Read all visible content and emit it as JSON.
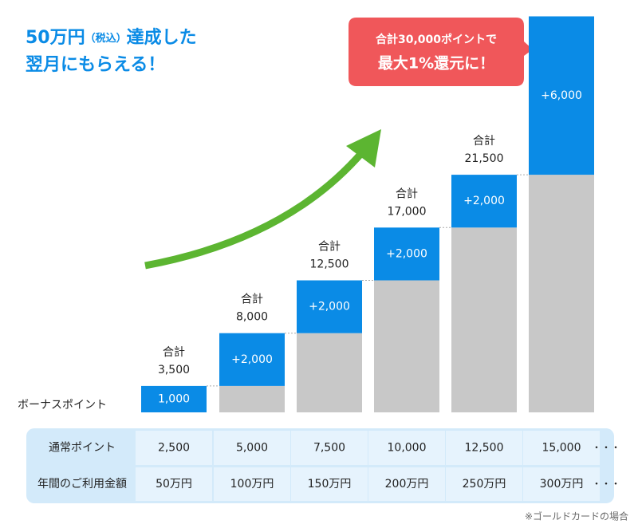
{
  "chart_data": {
    "type": "waterfall",
    "title_main": "50万円",
    "title_note": "（税込）",
    "title_rest": "達成した",
    "title_line2": "翌月にもらえる！",
    "callout_line1": "合計30,000ポイントで",
    "callout_line2": "最大1%還元に！",
    "series_label": "ボーナスポイント",
    "values": [
      1000,
      2000,
      2000,
      2000,
      2000,
      6000
    ],
    "value_labels": [
      "1,000",
      "+2,000",
      "+2,000",
      "+2,000",
      "+2,000",
      "+6,000"
    ],
    "color": "#0a8be6",
    "base_color": "#c8c8c8",
    "total_heading": "合計",
    "totals": [
      3500,
      8000,
      12500,
      17000,
      21500
    ],
    "total_labels": [
      "3,500",
      "8,000",
      "12,500",
      "17,000",
      "21,500"
    ],
    "table": {
      "rows": [
        {
          "header": "通常ポイント",
          "cells": [
            "2,500",
            "5,000",
            "7,500",
            "10,000",
            "12,500",
            "15,000"
          ],
          "more": "・・・"
        },
        {
          "header": "年間のご利用金額",
          "cells": [
            "50万円",
            "100万円",
            "150万円",
            "200万円",
            "250万円",
            "300万円"
          ],
          "more": "・・・"
        }
      ]
    },
    "footnote": "※ゴールドカードの場合"
  }
}
